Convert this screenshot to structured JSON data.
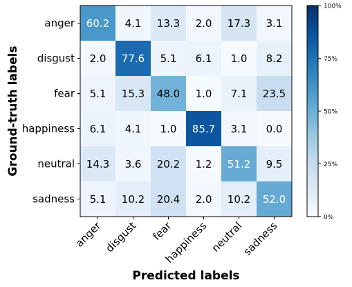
{
  "chart_data": {
    "type": "heatmap",
    "title": "",
    "xlabel": "Predicted labels",
    "ylabel": "Ground-truth labels",
    "x_categories": [
      "anger",
      "disgust",
      "fear",
      "happiness",
      "neutral",
      "sadness"
    ],
    "y_categories": [
      "anger",
      "disgust",
      "fear",
      "happiness",
      "neutral",
      "sadness"
    ],
    "values": [
      [
        60.2,
        4.1,
        13.3,
        2.0,
        17.3,
        3.1
      ],
      [
        2.0,
        77.6,
        5.1,
        6.1,
        1.0,
        8.2
      ],
      [
        5.1,
        15.3,
        48.0,
        1.0,
        7.1,
        23.5
      ],
      [
        6.1,
        4.1,
        1.0,
        85.7,
        3.1,
        0.0
      ],
      [
        14.3,
        3.6,
        20.2,
        1.2,
        51.2,
        9.5
      ],
      [
        5.1,
        10.2,
        20.4,
        2.0,
        10.2,
        52.0
      ]
    ],
    "value_format": "0.1",
    "colormap": "Blues",
    "color_range": [
      0,
      100
    ],
    "colorbar": {
      "ticks": [
        0,
        25,
        50,
        75,
        100
      ],
      "tick_labels": [
        "0%",
        "25%",
        "50%",
        "75%",
        "100%"
      ]
    }
  }
}
